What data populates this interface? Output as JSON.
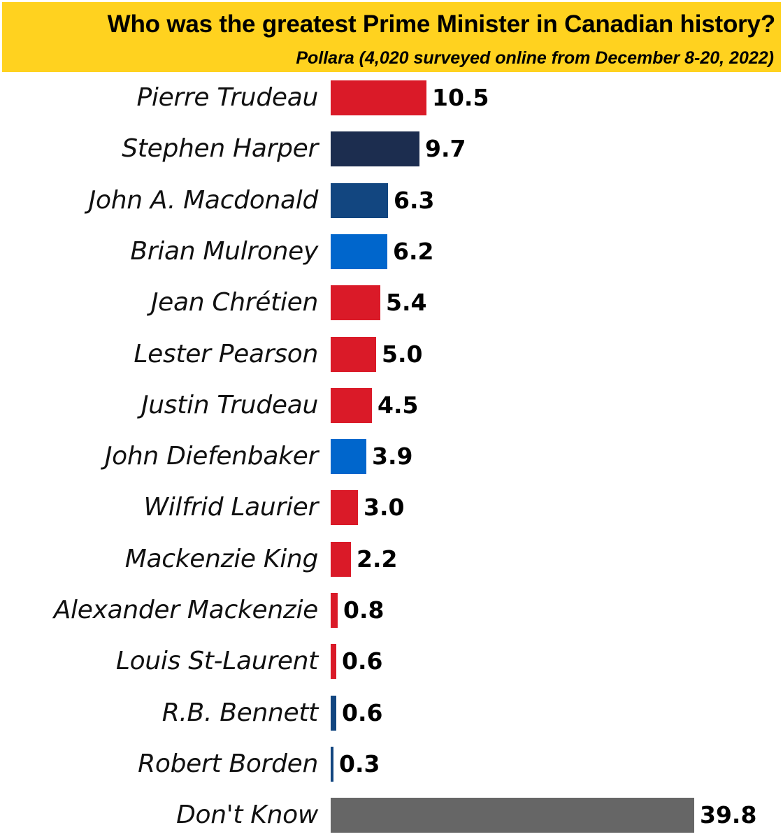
{
  "header": {
    "title": "Who was the greatest Prime Minister in Canadian history?",
    "subtitle": "Pollara (4,020 surveyed online from December 8-20, 2022)",
    "background_color": "#FFD21F"
  },
  "colors": {
    "liberal_red": "#DA1A28",
    "conservative_navy": "#1C2D4F",
    "conservative_blue": "#124680",
    "pc_blue": "#0066CC",
    "gray": "#666666"
  },
  "chart_data": {
    "type": "bar",
    "orientation": "horizontal",
    "title": "Who was the greatest Prime Minister in Canadian history?",
    "subtitle": "Pollara (4,020 surveyed online from December 8-20, 2022)",
    "xlabel": "",
    "ylabel": "",
    "xlim": [
      0,
      40
    ],
    "grid": false,
    "legend": null,
    "categories": [
      "Pierre Trudeau",
      "Stephen Harper",
      "John A. Macdonald",
      "Brian Mulroney",
      "Jean Chrétien",
      "Lester Pearson",
      "Justin Trudeau",
      "John Diefenbaker",
      "Wilfrid Laurier",
      "Mackenzie King",
      "Alexander Mackenzie",
      "Louis St-Laurent",
      "R.B. Bennett",
      "Robert Borden",
      "Don't Know"
    ],
    "values": [
      10.5,
      9.7,
      6.3,
      6.2,
      5.4,
      5.0,
      4.5,
      3.9,
      3.0,
      2.2,
      0.8,
      0.6,
      0.6,
      0.3,
      39.8
    ],
    "value_labels": [
      "10.5",
      "9.7",
      "6.3",
      "6.2",
      "5.4",
      "5.0",
      "4.5",
      "3.9",
      "3.0",
      "2.2",
      "0.8",
      "0.6",
      "0.6",
      "0.3",
      "39.8"
    ],
    "bar_colors": [
      "#DA1A28",
      "#1C2D4F",
      "#124680",
      "#0066CC",
      "#DA1A28",
      "#DA1A28",
      "#DA1A28",
      "#0066CC",
      "#DA1A28",
      "#DA1A28",
      "#DA1A28",
      "#DA1A28",
      "#124680",
      "#124680",
      "#666666"
    ]
  }
}
